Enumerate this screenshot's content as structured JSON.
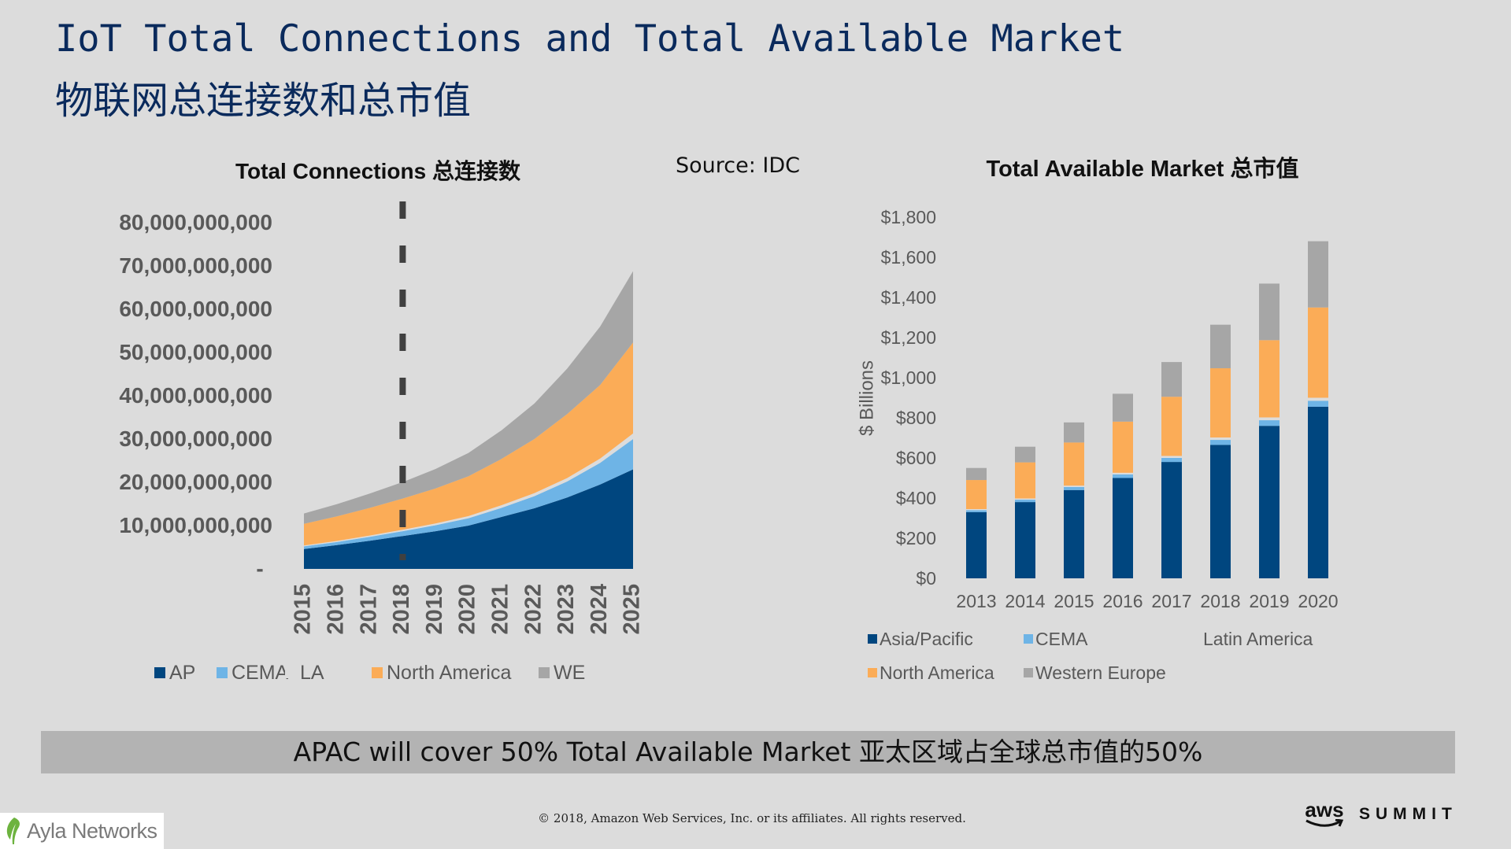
{
  "page": {
    "title_en": "IoT Total Connections and Total Available Market",
    "title_zh": "物联网总连接数和总市值",
    "source": "Source: IDC",
    "banner": "APAC will cover 50% Total Available Market 亚太区域占全球总市值的50%",
    "copyright": "© 2018, Amazon Web Services, Inc. or its affiliates. All rights reserved.",
    "ayla_logo": "Ayla Networks",
    "aws_logo": "aws",
    "summit_logo": "SUMMIT",
    "icons": {
      "ayla": "leaf-icon",
      "aws": "aws-smile-icon"
    }
  },
  "chart_data": [
    {
      "type": "area",
      "stacked": true,
      "title": "Total Connections 总连接数",
      "x": [
        "2015",
        "2016",
        "2017",
        "2018",
        "2019",
        "2020",
        "2021",
        "2022",
        "2023",
        "2024",
        "2025"
      ],
      "ylim": [
        0,
        80000000000
      ],
      "yticks": [
        0,
        10000000000,
        20000000000,
        30000000000,
        40000000000,
        50000000000,
        60000000000,
        70000000000,
        80000000000
      ],
      "ytick_labels": [
        "-",
        "10,000,000,000",
        "20,000,000,000",
        "30,000,000,000",
        "40,000,000,000",
        "50,000,000,000",
        "60,000,000,000",
        "70,000,000,000",
        "80,000,000,000"
      ],
      "marker_year": "2018",
      "legend": [
        "AP",
        "CEMA",
        "LA",
        "North America",
        "WE"
      ],
      "series": [
        {
          "name": "AP",
          "color": "#00467f",
          "values": [
            4600000000,
            5500000000,
            6500000000,
            7600000000,
            8700000000,
            10000000000,
            12000000000,
            14000000000,
            16500000000,
            19500000000,
            23000000000
          ]
        },
        {
          "name": "CEMA",
          "color": "#6eb4e6",
          "values": [
            600000000,
            700000000,
            900000000,
            1100000000,
            1400000000,
            1700000000,
            2100000000,
            2800000000,
            3700000000,
            5000000000,
            7000000000
          ]
        },
        {
          "name": "LA",
          "color": "#dcdcdc",
          "values": [
            200000000,
            250000000,
            300000000,
            350000000,
            400000000,
            500000000,
            600000000,
            700000000,
            800000000,
            1000000000,
            1300000000
          ]
        },
        {
          "name": "North America",
          "color": "#fbac57",
          "values": [
            5000000000,
            5700000000,
            6400000000,
            7200000000,
            8100000000,
            9200000000,
            10700000000,
            12500000000,
            14800000000,
            17000000000,
            21000000000
          ]
        },
        {
          "name": "WE",
          "color": "#a6a6a6",
          "values": [
            2400000000,
            2800000000,
            3300000000,
            3800000000,
            4500000000,
            5400000000,
            6600000000,
            8200000000,
            10500000000,
            13500000000,
            16500000000
          ]
        }
      ]
    },
    {
      "type": "bar",
      "stacked": true,
      "title": "Total Available Market 总市值",
      "ylabel": "$ Billions",
      "categories": [
        "2013",
        "2014",
        "2015",
        "2016",
        "2017",
        "2018",
        "2019",
        "2020"
      ],
      "ylim": [
        0,
        1800
      ],
      "yticks": [
        0,
        200,
        400,
        600,
        800,
        1000,
        1200,
        1400,
        1600,
        1800
      ],
      "ytick_labels": [
        "$0",
        "$200",
        "$400",
        "$600",
        "$800",
        "$1,000",
        "$1,200",
        "$1,400",
        "$1,600",
        "$1,800"
      ],
      "legend": [
        "Asia/Pacific",
        "CEMA",
        "Latin America",
        "North America",
        "Western Europe"
      ],
      "series": [
        {
          "name": "Asia/Pacific",
          "color": "#00467f",
          "values": [
            330,
            380,
            440,
            500,
            580,
            665,
            760,
            855
          ]
        },
        {
          "name": "CEMA",
          "color": "#6eb4e6",
          "values": [
            10,
            12,
            15,
            18,
            20,
            25,
            28,
            30
          ]
        },
        {
          "name": "Latin America",
          "color": "#dcdcdc",
          "values": [
            5,
            6,
            7,
            8,
            10,
            12,
            14,
            15
          ]
        },
        {
          "name": "North America",
          "color": "#fbac57",
          "values": [
            145,
            180,
            215,
            255,
            295,
            345,
            385,
            450
          ]
        },
        {
          "name": "Western Europe",
          "color": "#a6a6a6",
          "values": [
            60,
            78,
            100,
            139,
            173,
            217,
            282,
            330
          ]
        }
      ]
    }
  ]
}
